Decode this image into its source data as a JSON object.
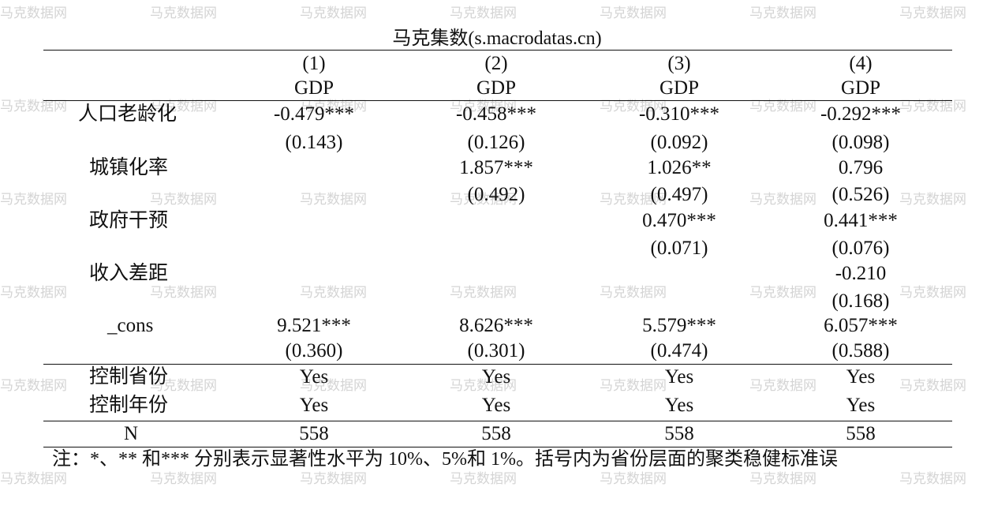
{
  "watermark": "马克数据网",
  "title": "马克集数(s.macrodatas.cn)",
  "columns": [
    {
      "num": "(1)",
      "dep": "GDP"
    },
    {
      "num": "(2)",
      "dep": "GDP"
    },
    {
      "num": "(3)",
      "dep": "GDP"
    },
    {
      "num": "(4)",
      "dep": "GDP"
    }
  ],
  "rows": [
    {
      "label": "人口老龄化",
      "coef": [
        "-0.479***",
        "-0.458***",
        "-0.310***",
        "-0.292***"
      ],
      "se": [
        "(0.143)",
        "(0.126)",
        "(0.092)",
        "(0.098)"
      ]
    },
    {
      "label": "城镇化率",
      "coef": [
        "",
        "1.857***",
        "1.026**",
        "0.796"
      ],
      "se": [
        "",
        "(0.492)",
        "(0.497)",
        "(0.526)"
      ]
    },
    {
      "label": "政府干预",
      "coef": [
        "",
        "",
        "0.470***",
        "0.441***"
      ],
      "se": [
        "",
        "",
        "(0.071)",
        "(0.076)"
      ]
    },
    {
      "label": "收入差距",
      "coef": [
        "",
        "",
        "",
        "-0.210"
      ],
      "se": [
        "",
        "",
        "",
        "(0.168)"
      ]
    },
    {
      "label": "_cons",
      "coef": [
        "9.521***",
        "8.626***",
        "5.579***",
        "6.057***"
      ],
      "se": [
        "(0.360)",
        "(0.301)",
        "(0.474)",
        "(0.588)"
      ]
    }
  ],
  "controls": [
    {
      "label": "控制省份",
      "values": [
        "Yes",
        "Yes",
        "Yes",
        "Yes"
      ]
    },
    {
      "label": "控制年份",
      "values": [
        "Yes",
        "Yes",
        "Yes",
        "Yes"
      ]
    }
  ],
  "n_row": {
    "label": "N",
    "values": [
      "558",
      "558",
      "558",
      "558"
    ]
  },
  "note": "注：*、** 和*** 分别表示显著性水平为 10%、5%和 1%。括号内为省份层面的聚类稳健标准误"
}
